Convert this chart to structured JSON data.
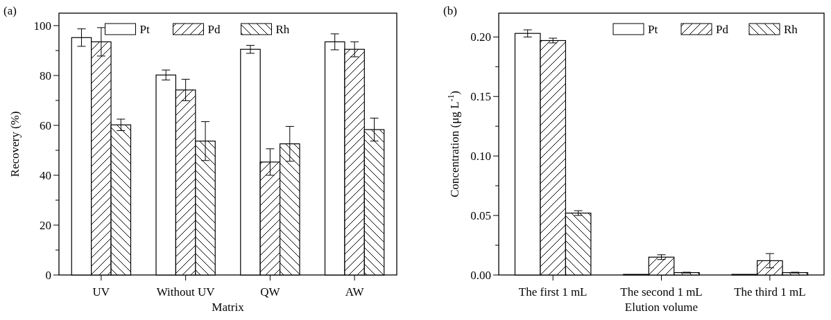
{
  "chart_data": [
    {
      "type": "bar",
      "title": "(a)",
      "xlabel": "Matrix",
      "ylabel": "Recovery (%)",
      "categories": [
        "UV",
        "Without UV",
        "QW",
        "AW"
      ],
      "series": [
        {
          "name": "Pt",
          "color": "#ffffff",
          "values": [
            95.2,
            80.2,
            90.5,
            93.5
          ],
          "errors": [
            3.5,
            2,
            1.6,
            3.2
          ]
        },
        {
          "name": "Pd",
          "color": "#000000",
          "values": [
            93.5,
            74.2,
            45.3,
            90.5
          ],
          "errors": [
            5.7,
            4.3,
            5.3,
            3
          ]
        },
        {
          "name": "Rh",
          "color": "#000000",
          "values": [
            60.2,
            53.7,
            52.6,
            58.3
          ],
          "errors": [
            2.3,
            7.8,
            7,
            4.6
          ]
        }
      ],
      "ylim": [
        0,
        105
      ],
      "yticks": [
        0,
        {
          "value": 10,
          "label": null
        },
        20,
        {
          "value": 30,
          "label": null
        },
        40,
        {
          "value": 50,
          "label": null
        },
        60,
        {
          "value": 70,
          "label": null
        },
        80,
        {
          "value": 90,
          "label": null
        },
        100
      ],
      "legend": "top"
    },
    {
      "type": "bar",
      "title": "(b)",
      "xlabel": "Elution volume",
      "ylabel": "Concentration (μg L$^{-1}$)",
      "categories": [
        "The first 1 mL",
        "The second 1 mL",
        "The third 1 mL"
      ],
      "series": [
        {
          "name": "Pt",
          "color": "#ffffff",
          "values": [
            0.203,
            0.0005,
            0.0005
          ],
          "errors": [
            0.003,
            null,
            null
          ]
        },
        {
          "name": "Pd",
          "color": "#000000",
          "values": [
            0.197,
            0.015,
            0.012
          ],
          "errors": [
            0.002,
            0.002,
            0.006
          ]
        },
        {
          "name": "Rh",
          "color": "#000000",
          "values": [
            0.052,
            0.002,
            0.002
          ],
          "errors": [
            0.002,
            0.0003,
            0.0003
          ]
        }
      ],
      "ylim": [
        0,
        0.22
      ],
      "yticks": [
        "0.00",
        {
          "value": 0.025,
          "label": null
        },
        {
          "value": 0.05,
          "label": "0.05"
        },
        {
          "value": 0.075,
          "label": null
        },
        {
          "value": 0.1,
          "label": "0.10"
        },
        {
          "value": 0.125,
          "label": null
        },
        {
          "value": 0.15,
          "label": "0.15"
        },
        {
          "value": 0.175,
          "label": null
        },
        {
          "value": 0.2,
          "label": "0.20"
        }
      ],
      "legend": "top right"
    }
  ]
}
